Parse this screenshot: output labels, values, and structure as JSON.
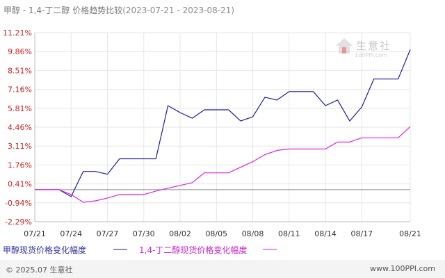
{
  "title": {
    "text": "甲醇 - 1,4-丁二醇 价格趋势比较",
    "dates": "(2023-07-21 - 2023-08-21)"
  },
  "legend": {
    "series1": "甲醇现货价格变化幅度",
    "series2": "1,4-丁二醇现货价格变化幅度"
  },
  "footer": {
    "copyright": "© 2025.07 生意社",
    "website": "www.100PPI.com"
  },
  "watermark": {
    "name": "生意社",
    "url": "100PPI.com"
  },
  "colors": {
    "series1": "#1a1aa8",
    "series2": "#e020e0",
    "grid": "#e6e6e6",
    "axis": "#bbbbbb",
    "tick_text": "#cc2222"
  },
  "chart_data": {
    "type": "line",
    "x": [
      "07/21",
      "07/22",
      "07/23",
      "07/24",
      "07/25",
      "07/26",
      "07/27",
      "07/28",
      "07/29",
      "07/30",
      "07/31",
      "08/01",
      "08/02",
      "08/03",
      "08/04",
      "08/05",
      "08/06",
      "08/07",
      "08/08",
      "08/09",
      "08/10",
      "08/11",
      "08/12",
      "08/13",
      "08/14",
      "08/15",
      "08/16",
      "08/17",
      "08/18",
      "08/19",
      "08/20",
      "08/21"
    ],
    "x_tick_labels": [
      "07/21",
      "07/24",
      "07/27",
      "07/30",
      "08/02",
      "08/05",
      "08/08",
      "08/11",
      "08/14",
      "08/17",
      "08/21"
    ],
    "y_tick_labels": [
      "11.21%",
      "9.86%",
      "8.51%",
      "7.16%",
      "5.81%",
      "4.46%",
      "3.11%",
      "1.76%",
      "0.41%",
      "-0.94%",
      "-2.29%"
    ],
    "ylim": [
      -2.29,
      11.21
    ],
    "grid": true,
    "legend_position": "bottom",
    "series": [
      {
        "name": "甲醇现货价格变化幅度",
        "values": [
          0,
          0,
          0,
          -0.5,
          1.3,
          1.3,
          1.1,
          2.2,
          2.2,
          2.2,
          2.2,
          6.0,
          5.5,
          5.1,
          5.7,
          5.7,
          5.7,
          4.9,
          5.2,
          6.6,
          6.4,
          7.0,
          7.0,
          7.0,
          6.0,
          6.4,
          4.9,
          5.9,
          7.9,
          7.9,
          7.9,
          10.0
        ]
      },
      {
        "name": "1,4-丁二醇现货价格变化幅度",
        "values": [
          0,
          0,
          0,
          -0.35,
          -0.9,
          -0.8,
          -0.6,
          -0.35,
          -0.35,
          -0.35,
          -0.1,
          0.1,
          0.3,
          0.5,
          1.2,
          1.2,
          1.2,
          1.6,
          2.0,
          2.5,
          2.8,
          2.9,
          2.9,
          2.9,
          2.9,
          3.4,
          3.4,
          3.7,
          3.7,
          3.7,
          3.7,
          4.5
        ]
      }
    ]
  }
}
